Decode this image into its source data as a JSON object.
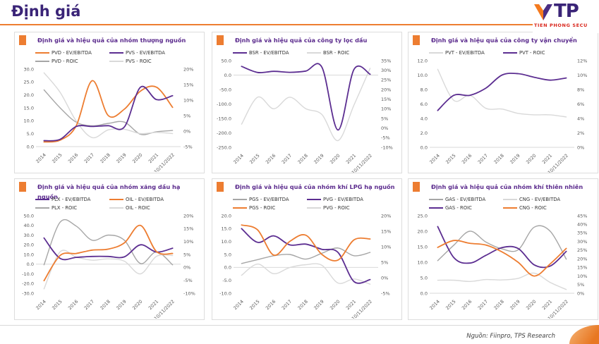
{
  "page": {
    "title": "Định giá",
    "footer": {
      "source": "Nguồn: Fiinpro, TPS Research"
    },
    "logo": {
      "mark": "TP",
      "subtext": "TIEN PHONG SECU"
    }
  },
  "colors": {
    "orange": "#ED7D31",
    "purple": "#5C2E91",
    "gray": "#A6A6A6",
    "light_gray": "#D9D9D9",
    "header_purple": "#3A2477",
    "title_purple": "#5B2B8D",
    "axis_text": "#595959",
    "zero_line": "#D9D9D9",
    "logo_red": "#D9261C",
    "logo_orange": "#F47A1F"
  },
  "categories": [
    "2014",
    "2015",
    "2016",
    "2017",
    "2018",
    "2019",
    "2020",
    "2021",
    "10/11/2022"
  ],
  "chart_data": [
    {
      "type": "line",
      "title": "Định giá và hiệu quả của nhóm thượng nguồn",
      "left_axis": {
        "ticks": [
          30,
          25,
          20,
          15,
          10,
          5,
          0
        ],
        "format": "decimal"
      },
      "right_axis": {
        "ticks": [
          20,
          15,
          10,
          5,
          0,
          -5
        ],
        "format": "percent"
      },
      "series": [
        {
          "name": "PVD - EV/EBITDA",
          "color": "orange",
          "axis": "left",
          "values": [
            1.8,
            2.5,
            8,
            25.5,
            12,
            14.5,
            21.5,
            23,
            15.2
          ]
        },
        {
          "name": "PVS - EV/EBITDA",
          "color": "purple",
          "axis": "left",
          "values": [
            2.3,
            2.8,
            7.8,
            7.8,
            8.1,
            7.6,
            23,
            18.2,
            19.7
          ]
        },
        {
          "name": "PVD - ROIC",
          "color": "gray",
          "axis": "right",
          "values": [
            13.3,
            7.5,
            2.9,
            1.7,
            2.5,
            2.9,
            -1,
            -0.2,
            0.2
          ]
        },
        {
          "name": "PVS - ROIC",
          "color": "light_gray",
          "axis": "right",
          "values": [
            18.8,
            12.5,
            3.3,
            -2.1,
            0.4,
            0.6,
            -0.8,
            -0.4,
            -0.8
          ]
        }
      ]
    },
    {
      "type": "line",
      "title": "Định giá và hiệu quả của công ty lọc dầu",
      "left_axis": {
        "ticks": [
          50,
          0,
          -50,
          -100,
          -150,
          -200,
          -250
        ],
        "format": "decimal"
      },
      "right_axis": {
        "ticks": [
          35,
          30,
          25,
          20,
          15,
          10,
          5,
          0,
          -5,
          -10
        ],
        "format": "percent"
      },
      "series": [
        {
          "name": "BSR - EV/EBITDA",
          "color": "purple",
          "axis": "left",
          "values": [
            30,
            9,
            13,
            9.5,
            14,
            27,
            -190,
            20,
            3
          ]
        },
        {
          "name": "BSR - ROIC",
          "color": "light_gray",
          "axis": "right",
          "values": [
            2,
            16,
            10,
            16,
            10,
            7,
            -6.5,
            12,
            31
          ]
        }
      ]
    },
    {
      "type": "line",
      "title": "Định giá và hiệu quả của công ty vận chuyển",
      "left_axis": {
        "ticks": [
          12,
          10,
          8,
          6,
          4,
          2,
          0
        ],
        "format": "decimal"
      },
      "right_axis": {
        "ticks": [
          12,
          10,
          8,
          6,
          4,
          2,
          0
        ],
        "format": "percent"
      },
      "series": [
        {
          "name": "PVT - EV/EBITDA",
          "color": "light_gray",
          "axis": "left",
          "values": [
            10.8,
            6.5,
            7.2,
            5.4,
            5.3,
            4.7,
            4.5,
            4.5,
            4.2
          ]
        },
        {
          "name": "PVT - ROIC",
          "color": "purple",
          "axis": "right",
          "values": [
            5.1,
            7.2,
            7.2,
            8.2,
            10,
            10.2,
            9.7,
            9.3,
            9.6
          ]
        }
      ]
    },
    {
      "type": "line",
      "title": "Định giá và hiệu quả của nhóm xăng dầu hạ nguồn",
      "left_axis": {
        "ticks": [
          50,
          40,
          30,
          20,
          10,
          0,
          -10,
          -20,
          -30
        ],
        "format": "decimal"
      },
      "right_axis": {
        "ticks": [
          20,
          15,
          10,
          5,
          0,
          -5,
          -10
        ],
        "format": "percent"
      },
      "series": [
        {
          "name": "PLX - EV/EBITDA",
          "color": "purple",
          "axis": "left",
          "values": [
            27,
            6,
            7,
            8,
            8,
            7.5,
            20,
            12.5,
            16.5
          ]
        },
        {
          "name": "OIL - EV/EBITDA",
          "color": "orange",
          "axis": "left",
          "values": [
            -17,
            9,
            11,
            14.5,
            15.5,
            22,
            40,
            13,
            11
          ]
        },
        {
          "name": "PLX - ROIC",
          "color": "gray",
          "axis": "right",
          "values": [
            1,
            17.5,
            16,
            10.5,
            12.5,
            10.5,
            1.5,
            6,
            1
          ]
        },
        {
          "name": "OIL - ROIC",
          "color": "light_gray",
          "axis": "right",
          "values": [
            -8.3,
            6,
            4,
            2.8,
            3.3,
            2.4,
            -2.5,
            4.3,
            4.6
          ]
        }
      ]
    },
    {
      "type": "line",
      "title": "Định giá và hiệu quả của nhóm khí LPG hạ nguồn",
      "left_axis": {
        "ticks": [
          20,
          15,
          10,
          5,
          0,
          -5,
          -10
        ],
        "format": "decimal"
      },
      "right_axis": {
        "ticks": [
          20,
          15,
          10,
          5,
          0,
          -5
        ],
        "format": "percent"
      },
      "series": [
        {
          "name": "PGS - EV/EBITDA",
          "color": "gray",
          "axis": "left",
          "values": [
            1.5,
            3,
            4.5,
            5,
            3.2,
            5.5,
            7.5,
            4.5,
            5.8
          ]
        },
        {
          "name": "PVG - EV/EBITDA",
          "color": "purple",
          "axis": "left",
          "values": [
            15,
            9.7,
            12.2,
            8.7,
            9,
            7,
            5.8,
            -5.5,
            -4.7
          ]
        },
        {
          "name": "PGS - ROIC",
          "color": "orange",
          "axis": "right",
          "values": [
            17,
            15.4,
            7.3,
            11.7,
            13.7,
            7.5,
            5.7,
            12.2,
            12.5
          ]
        },
        {
          "name": "PVG - ROIC",
          "color": "light_gray",
          "axis": "right",
          "values": [
            0.8,
            4.4,
            1.3,
            3.3,
            4.2,
            4,
            -1.7,
            -0.4,
            -2.1
          ]
        }
      ]
    },
    {
      "type": "line",
      "title": "Định giá và hiệu quả của nhóm khí thiên nhiên",
      "left_axis": {
        "ticks": [
          25,
          20,
          15,
          10,
          5,
          0
        ],
        "format": "decimal"
      },
      "right_axis": {
        "ticks": [
          45,
          40,
          35,
          30,
          25,
          20,
          15,
          10,
          5,
          0
        ],
        "format": "percent"
      },
      "series": [
        {
          "name": "GAS - EV/EBITDA",
          "color": "gray",
          "axis": "left",
          "values": [
            10.5,
            15.5,
            20,
            16.5,
            14.3,
            14,
            21.3,
            20,
            11
          ]
        },
        {
          "name": "CNG - EV/EBITDA",
          "color": "light_gray",
          "axis": "left",
          "values": [
            4.2,
            4.2,
            3.8,
            4.4,
            4.3,
            4.8,
            6.5,
            3.5,
            1.2
          ]
        },
        {
          "name": "GAS - ROIC",
          "color": "purple",
          "axis": "right",
          "values": [
            38.7,
            20.7,
            17.5,
            22,
            26.5,
            26,
            16.5,
            15.8,
            24.3
          ]
        },
        {
          "name": "CNG - ROIC",
          "color": "orange",
          "axis": "right",
          "values": [
            26.6,
            30.6,
            29,
            28,
            24,
            18,
            10,
            17,
            26
          ]
        }
      ]
    }
  ]
}
